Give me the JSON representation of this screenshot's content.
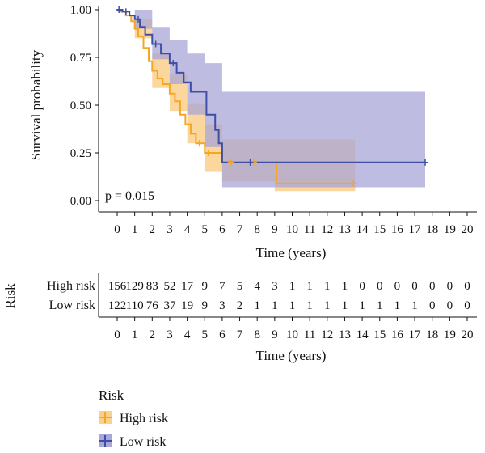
{
  "chart_data": {
    "type": "line",
    "subtype": "kaplan-meier",
    "xlabel": "Time (years)",
    "ylabel": "Survival probability",
    "xlim": [
      0,
      20
    ],
    "ylim": [
      0,
      1
    ],
    "x_ticks": [
      0,
      1,
      2,
      3,
      4,
      5,
      6,
      7,
      8,
      9,
      10,
      11,
      12,
      13,
      14,
      15,
      16,
      17,
      18,
      19,
      20
    ],
    "y_ticks": [
      "0.00",
      "0.25",
      "0.50",
      "0.75",
      "1.00"
    ],
    "annotation": "p = 0.015",
    "colors": {
      "high": "#f5a623",
      "low": "#3f4fa5",
      "high_band": "#fbd08c",
      "low_band": "#a9a6d8"
    },
    "series": [
      {
        "name": "High risk",
        "color": "#f5a623",
        "steps": [
          [
            0,
            1.0
          ],
          [
            0.2,
            0.99
          ],
          [
            0.5,
            0.97
          ],
          [
            0.8,
            0.94
          ],
          [
            1.0,
            0.9
          ],
          [
            1.2,
            0.86
          ],
          [
            1.5,
            0.8
          ],
          [
            1.8,
            0.73
          ],
          [
            2.0,
            0.68
          ],
          [
            2.3,
            0.64
          ],
          [
            2.6,
            0.61
          ],
          [
            3.0,
            0.56
          ],
          [
            3.3,
            0.52
          ],
          [
            3.6,
            0.45
          ],
          [
            3.9,
            0.4
          ],
          [
            4.2,
            0.35
          ],
          [
            4.5,
            0.3
          ],
          [
            5.0,
            0.25
          ],
          [
            6.0,
            0.2
          ],
          [
            9.0,
            0.2
          ],
          [
            9.1,
            0.09
          ],
          [
            13.6,
            0.09
          ]
        ],
        "band_upper": [
          [
            0,
            1.0
          ],
          [
            1.0,
            0.95
          ],
          [
            2.0,
            0.77
          ],
          [
            3.0,
            0.66
          ],
          [
            4.0,
            0.51
          ],
          [
            5.0,
            0.4
          ],
          [
            6.0,
            0.32
          ],
          [
            9.0,
            0.32
          ],
          [
            13.6,
            0.32
          ]
        ],
        "band_lower": [
          [
            0,
            1.0
          ],
          [
            1.0,
            0.85
          ],
          [
            2.0,
            0.59
          ],
          [
            3.0,
            0.47
          ],
          [
            4.0,
            0.3
          ],
          [
            5.0,
            0.15
          ],
          [
            6.0,
            0.1
          ],
          [
            9.0,
            0.05
          ],
          [
            13.6,
            0.02
          ]
        ],
        "censor_x": [
          4.7,
          5.2,
          6.5,
          7.8,
          13.5
        ]
      },
      {
        "name": "Low risk",
        "color": "#3f4fa5",
        "steps": [
          [
            0,
            1.0
          ],
          [
            0.3,
            0.99
          ],
          [
            0.7,
            0.97
          ],
          [
            1.0,
            0.95
          ],
          [
            1.3,
            0.91
          ],
          [
            1.6,
            0.87
          ],
          [
            2.0,
            0.82
          ],
          [
            2.5,
            0.77
          ],
          [
            3.0,
            0.72
          ],
          [
            3.4,
            0.67
          ],
          [
            3.8,
            0.62
          ],
          [
            4.2,
            0.57
          ],
          [
            5.0,
            0.57
          ],
          [
            5.1,
            0.45
          ],
          [
            5.5,
            0.45
          ],
          [
            5.6,
            0.37
          ],
          [
            5.8,
            0.3
          ],
          [
            6.0,
            0.2
          ],
          [
            17.6,
            0.2
          ]
        ],
        "band_upper": [
          [
            0,
            1.0
          ],
          [
            1.0,
            1.0
          ],
          [
            2.0,
            0.91
          ],
          [
            3.0,
            0.84
          ],
          [
            4.0,
            0.77
          ],
          [
            5.0,
            0.72
          ],
          [
            6.0,
            0.57
          ],
          [
            17.6,
            0.57
          ]
        ],
        "band_lower": [
          [
            0,
            1.0
          ],
          [
            1.0,
            0.9
          ],
          [
            2.0,
            0.74
          ],
          [
            3.0,
            0.61
          ],
          [
            4.0,
            0.45
          ],
          [
            5.0,
            0.28
          ],
          [
            6.0,
            0.07
          ],
          [
            17.6,
            0.07
          ]
        ],
        "censor_x": [
          0.1,
          0.5,
          1.2,
          2.2,
          3.2,
          7.6,
          17.6
        ]
      }
    ]
  },
  "risk_table": {
    "ylabel": "Risk",
    "xlabel": "Time (years)",
    "rows": [
      {
        "label": "High risk",
        "counts": [
          "156",
          "129",
          "83",
          "52",
          "17",
          "9",
          "7",
          "5",
          "4",
          "3",
          "1",
          "1",
          "1",
          "1",
          "0",
          "0",
          "0",
          "0",
          "0",
          "0",
          "0"
        ]
      },
      {
        "label": "Low risk",
        "counts": [
          "122",
          "110",
          "76",
          "37",
          "19",
          "9",
          "3",
          "2",
          "1",
          "1",
          "1",
          "1",
          "1",
          "1",
          "1",
          "1",
          "1",
          "1",
          "0",
          "0",
          "0"
        ]
      }
    ]
  },
  "legend": {
    "title": "Risk",
    "items": [
      {
        "label": "High risk",
        "color": "#f5a623"
      },
      {
        "label": "Low risk",
        "color": "#3f4fa5"
      }
    ]
  }
}
